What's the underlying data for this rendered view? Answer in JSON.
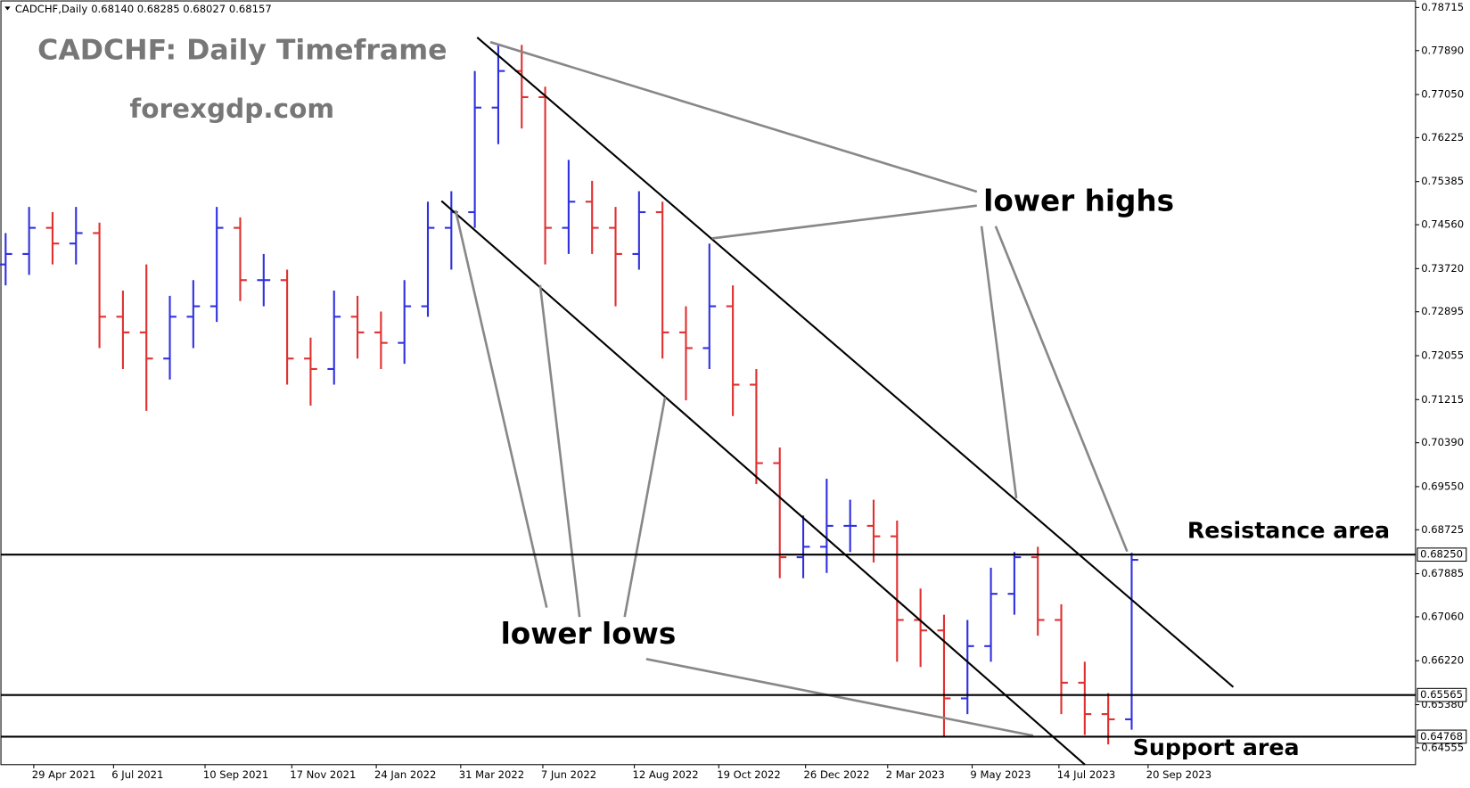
{
  "chart_data": {
    "type": "ohlc",
    "symbol": "CADCHF,Daily",
    "header_values": "0.68140 0.68285 0.68027 0.68157",
    "title": "CADCHF: Daily Timeframe",
    "subtitle": "forexgdp.com",
    "annotations": {
      "lower_highs": "lower highs",
      "lower_lows": "lower lows",
      "resistance": "Resistance area",
      "support": "Support area"
    },
    "up_color": "#3030e0",
    "down_color": "#e03030",
    "ohlc": [
      [
        0.738,
        0.744,
        0.734,
        0.74
      ],
      [
        0.74,
        0.749,
        0.736,
        0.745
      ],
      [
        0.745,
        0.748,
        0.738,
        0.742
      ],
      [
        0.742,
        0.749,
        0.738,
        0.744
      ],
      [
        0.744,
        0.746,
        0.722,
        0.728
      ],
      [
        0.728,
        0.733,
        0.718,
        0.725
      ],
      [
        0.725,
        0.738,
        0.71,
        0.72
      ],
      [
        0.72,
        0.732,
        0.716,
        0.728
      ],
      [
        0.728,
        0.735,
        0.722,
        0.73
      ],
      [
        0.73,
        0.749,
        0.727,
        0.745
      ],
      [
        0.745,
        0.747,
        0.731,
        0.735
      ],
      [
        0.735,
        0.74,
        0.73,
        0.735
      ],
      [
        0.735,
        0.737,
        0.715,
        0.72
      ],
      [
        0.72,
        0.724,
        0.711,
        0.718
      ],
      [
        0.718,
        0.733,
        0.715,
        0.728
      ],
      [
        0.728,
        0.732,
        0.72,
        0.725
      ],
      [
        0.725,
        0.729,
        0.718,
        0.723
      ],
      [
        0.723,
        0.735,
        0.719,
        0.73
      ],
      [
        0.73,
        0.75,
        0.728,
        0.745
      ],
      [
        0.745,
        0.752,
        0.737,
        0.748
      ],
      [
        0.748,
        0.775,
        0.745,
        0.768
      ],
      [
        0.768,
        0.78,
        0.761,
        0.775
      ],
      [
        0.775,
        0.78,
        0.764,
        0.77
      ],
      [
        0.77,
        0.772,
        0.738,
        0.745
      ],
      [
        0.745,
        0.758,
        0.74,
        0.75
      ],
      [
        0.75,
        0.754,
        0.74,
        0.745
      ],
      [
        0.745,
        0.749,
        0.73,
        0.74
      ],
      [
        0.74,
        0.752,
        0.737,
        0.748
      ],
      [
        0.748,
        0.75,
        0.72,
        0.725
      ],
      [
        0.725,
        0.73,
        0.712,
        0.722
      ],
      [
        0.722,
        0.742,
        0.718,
        0.73
      ],
      [
        0.73,
        0.734,
        0.709,
        0.715
      ],
      [
        0.715,
        0.718,
        0.696,
        0.7
      ],
      [
        0.7,
        0.703,
        0.678,
        0.682
      ],
      [
        0.682,
        0.69,
        0.678,
        0.684
      ],
      [
        0.684,
        0.697,
        0.679,
        0.688
      ],
      [
        0.688,
        0.693,
        0.683,
        0.688
      ],
      [
        0.688,
        0.693,
        0.681,
        0.686
      ],
      [
        0.686,
        0.689,
        0.662,
        0.67
      ],
      [
        0.67,
        0.676,
        0.661,
        0.668
      ],
      [
        0.668,
        0.671,
        0.6477,
        0.655
      ],
      [
        0.655,
        0.67,
        0.652,
        0.665
      ],
      [
        0.665,
        0.68,
        0.662,
        0.675
      ],
      [
        0.675,
        0.683,
        0.671,
        0.682
      ],
      [
        0.682,
        0.684,
        0.667,
        0.67
      ],
      [
        0.67,
        0.673,
        0.652,
        0.658
      ],
      [
        0.658,
        0.662,
        0.648,
        0.652
      ],
      [
        0.652,
        0.656,
        0.6462,
        0.651
      ],
      [
        0.651,
        0.68285,
        0.649,
        0.6815
      ]
    ],
    "xlim": [
      -0.2,
      60.1
    ],
    "xticks": [
      {
        "value": 1.2,
        "label": "29 Apr 2021"
      },
      {
        "value": 4.6,
        "label": "6 Jul 2021"
      },
      {
        "value": 8.5,
        "label": "10 Sep 2021"
      },
      {
        "value": 12.2,
        "label": "17 Nov 2021"
      },
      {
        "value": 15.8,
        "label": "24 Jan 2022"
      },
      {
        "value": 19.4,
        "label": "31 Mar 2022"
      },
      {
        "value": 22.9,
        "label": "7 Jun 2022"
      },
      {
        "value": 26.8,
        "label": "12 Aug 2022"
      },
      {
        "value": 30.4,
        "label": "19 Oct 2022"
      },
      {
        "value": 34.1,
        "label": "26 Dec 2022"
      },
      {
        "value": 37.6,
        "label": "2 Mar 2023"
      },
      {
        "value": 41.2,
        "label": "9 May 2023"
      },
      {
        "value": 44.9,
        "label": "14 Jul 2023"
      },
      {
        "value": 48.7,
        "label": "20 Sep 2023"
      }
    ],
    "ylim": [
      0.64233,
      0.78858
    ],
    "yticks": [
      0.78715,
      {
        "value": 0.7789,
        "label": "0.77890"
      },
      {
        "value": 0.7705,
        "label": "0.77050"
      },
      0.76225,
      0.75385,
      {
        "value": 0.7456,
        "label": "0.74560"
      },
      {
        "value": 0.7372,
        "label": "0.73720"
      },
      0.72895,
      0.72055,
      0.71215,
      {
        "value": 0.7039,
        "label": "0.70390"
      },
      {
        "value": 0.6955,
        "label": "0.69550"
      },
      0.68725,
      0.67885,
      {
        "value": 0.6706,
        "label": "0.67060"
      },
      {
        "value": 0.6622,
        "label": "0.66220"
      },
      {
        "value": 0.6538,
        "label": "0.65380"
      },
      0.64555
    ],
    "levels": [
      {
        "value": 0.6825,
        "label": "0.68250"
      },
      0.65565,
      0.64768
    ]
  }
}
